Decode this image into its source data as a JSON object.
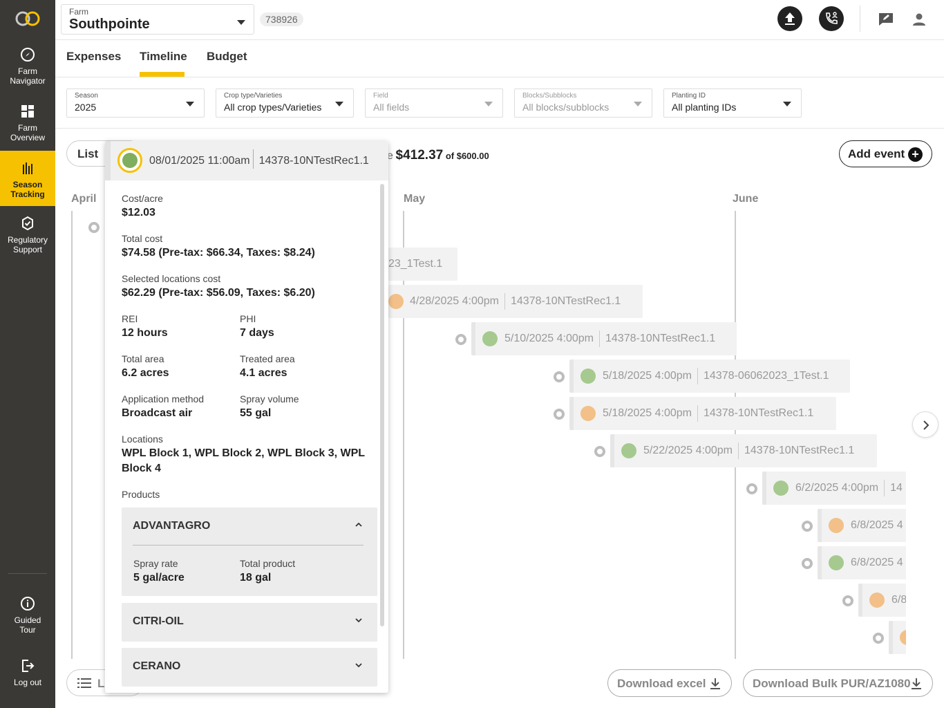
{
  "sidebar": {
    "items": [
      {
        "label_line1": "Farm",
        "label_line2": "Navigator",
        "icon": "compass-icon"
      },
      {
        "label_line1": "Farm",
        "label_line2": "Overview",
        "icon": "grid-icon"
      },
      {
        "label_line1": "Season",
        "label_line2": "Tracking",
        "icon": "bar-chart-icon"
      },
      {
        "label_line1": "Regulatory",
        "label_line2": "Support",
        "icon": "badge-check-icon"
      },
      {
        "label_line1": "Guided",
        "label_line2": "Tour",
        "icon": "info-icon"
      },
      {
        "label_line1": "Log out",
        "label_line2": "",
        "icon": "logout-icon"
      }
    ]
  },
  "topbar": {
    "farm_label": "Farm",
    "farm_value": "Southpointe",
    "farm_id": "738926"
  },
  "tabs": [
    "Expenses",
    "Timeline",
    "Budget"
  ],
  "filters": [
    {
      "label": "Season",
      "value": "2025",
      "disabled": false
    },
    {
      "label": "Crop type/Varieties",
      "value": "All crop types/Varieties",
      "disabled": false
    },
    {
      "label": "Field",
      "value": "All fields",
      "disabled": true
    },
    {
      "label": "Blocks/Subblocks",
      "value": "All blocks/subblocks",
      "disabled": true
    },
    {
      "label": "Planting ID",
      "value": "All planting IDs",
      "disabled": false
    }
  ],
  "toolbar": {
    "list_label": "List",
    "budget_prefix": "e",
    "budget_spent": "$412.37",
    "budget_of": "of $600.00",
    "add_event_label": "Add event"
  },
  "timeline": {
    "months": [
      "April",
      "May",
      "June"
    ],
    "events": [
      {
        "date": "",
        "rec": "23_1Test.1",
        "type": "none"
      },
      {
        "date": "4/28/2025 4:00pm",
        "rec": "14378-10NTestRec1.1",
        "type": "orange"
      },
      {
        "date": "5/10/2025 4:00pm",
        "rec": "14378-10NTestRec1.1",
        "type": "green"
      },
      {
        "date": "5/18/2025 4:00pm",
        "rec": "14378-06062023_1Test.1",
        "type": "green"
      },
      {
        "date": "5/18/2025 4:00pm",
        "rec": "14378-10NTestRec1.1",
        "type": "orange"
      },
      {
        "date": "5/22/2025 4:00pm",
        "rec": "14378-10NTestRec1.1",
        "type": "green"
      },
      {
        "date": "6/2/2025 4:00pm",
        "rec": "14",
        "type": "green"
      },
      {
        "date": "6/8/2025 4",
        "rec": "",
        "type": "orange"
      },
      {
        "date": "6/8/2025 4",
        "rec": "",
        "type": "green"
      },
      {
        "date": "6/8",
        "rec": "",
        "type": "orange"
      },
      {
        "date": "",
        "rec": "",
        "type": "orange"
      }
    ]
  },
  "bottom": {
    "legend_label": "L",
    "download_excel": "Download excel",
    "download_bulk": "Download Bulk PUR/AZ1080"
  },
  "popup": {
    "datetime": "08/01/2025 11:00am",
    "rec_id": "14378-10NTestRec1.1",
    "cost_acre_label": "Cost/acre",
    "cost_acre_value": "$12.03",
    "total_cost_label": "Total cost",
    "total_cost_value": "$74.58 (Pre-tax: $66.34, Taxes: $8.24)",
    "selected_cost_label": "Selected locations cost",
    "selected_cost_value": "$62.29 (Pre-tax: $56.09, Taxes: $6.20)",
    "rei_label": "REI",
    "rei_value": "12 hours",
    "phi_label": "PHI",
    "phi_value": "7 days",
    "total_area_label": "Total area",
    "total_area_value": "6.2 acres",
    "treated_area_label": "Treated area",
    "treated_area_value": "4.1 acres",
    "app_method_label": "Application method",
    "app_method_value": "Broadcast air",
    "spray_volume_label": "Spray volume",
    "spray_volume_value": "55 gal",
    "locations_label": "Locations",
    "locations_value": "WPL Block 1, WPL Block 2, WPL Block 3, WPL Block 4",
    "products_label": "Products",
    "products": [
      {
        "name": "ADVANTAGRO",
        "expanded": true,
        "spray_rate_label": "Spray rate",
        "spray_rate": "5 gal/acre",
        "total_product_label": "Total product",
        "total_product": "18 gal"
      },
      {
        "name": "CITRI-OIL",
        "expanded": false
      },
      {
        "name": "CERANO",
        "expanded": false
      }
    ]
  },
  "colors": {
    "accent": "#f6c100",
    "sidebar_bg": "#3b3936",
    "green_event": "#a6c98f",
    "orange_event": "#f2c088"
  }
}
